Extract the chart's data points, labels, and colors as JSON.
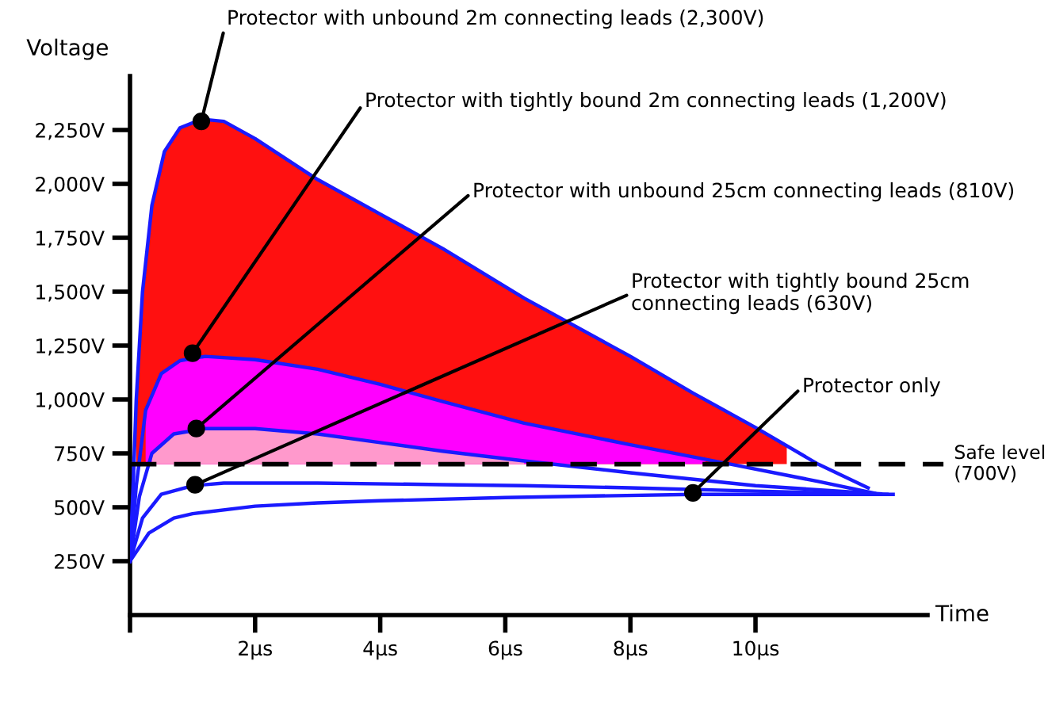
{
  "chart_data": {
    "type": "line",
    "xlabel": "Time",
    "ylabel": "Voltage",
    "xlim": [
      0,
      12.75
    ],
    "ylim": [
      0,
      2500
    ],
    "xticks": [
      {
        "value": 0,
        "label": null
      },
      {
        "value": 2,
        "label": "2μs"
      },
      {
        "value": 4,
        "label": "4μs"
      },
      {
        "value": 6,
        "label": "6μs"
      },
      {
        "value": 8,
        "label": "8μs"
      },
      {
        "value": 10,
        "label": "10μs"
      }
    ],
    "yticks": [
      {
        "value": 250,
        "label": "250V"
      },
      {
        "value": 500,
        "label": "500V"
      },
      {
        "value": 750,
        "label": "750V"
      },
      {
        "value": 1000,
        "label": "1,000V"
      },
      {
        "value": 1250,
        "label": "1,250V"
      },
      {
        "value": 1500,
        "label": "1,500V"
      },
      {
        "value": 1750,
        "label": "1,750V"
      },
      {
        "value": 2000,
        "label": "2,000V"
      },
      {
        "value": 2250,
        "label": "2,250V"
      }
    ],
    "grid": false,
    "legend": false,
    "series": [
      {
        "type": "area",
        "color": "#ff1010",
        "x": [
          0.1,
          0.2,
          0.35,
          0.55,
          0.8,
          1.15,
          1.5,
          2,
          3,
          4,
          5,
          6.3,
          8,
          9,
          10,
          10.5
        ],
        "values": [
          1000,
          1500,
          1900,
          2150,
          2260,
          2300,
          2290,
          2210,
          2020,
          1860,
          1700,
          1470,
          1200,
          1030,
          870,
          785
        ]
      },
      {
        "type": "area",
        "color": "#ff00ff",
        "x": [
          0.25,
          0.5,
          0.8,
          1.2,
          2,
          3,
          4,
          5,
          6.3,
          8,
          9.2
        ],
        "values": [
          950,
          1120,
          1180,
          1200,
          1185,
          1140,
          1070,
          990,
          890,
          790,
          720
        ]
      },
      {
        "type": "area",
        "color": "#ff99cc",
        "x": [
          0.35,
          0.7,
          1.2,
          2,
          3,
          4,
          5,
          6.3
        ],
        "values": [
          750,
          840,
          865,
          865,
          840,
          800,
          760,
          715
        ]
      },
      {
        "color": "#1a1aff",
        "x": [
          0,
          0.05,
          0.1,
          0.2,
          0.35,
          0.55,
          0.8,
          1.15,
          1.5,
          2,
          3,
          4,
          5,
          6.3,
          8,
          9,
          10,
          11,
          11.8
        ],
        "values": [
          250,
          600,
          1000,
          1500,
          1900,
          2150,
          2260,
          2300,
          2290,
          2210,
          2020,
          1860,
          1700,
          1470,
          1200,
          1030,
          870,
          700,
          590
        ]
      },
      {
        "color": "#1a1aff",
        "x": [
          0,
          0.1,
          0.25,
          0.5,
          0.8,
          1.2,
          2,
          3,
          4,
          5,
          6.3,
          8,
          9.6,
          11,
          11.9
        ],
        "values": [
          250,
          600,
          950,
          1120,
          1180,
          1200,
          1185,
          1140,
          1070,
          990,
          890,
          790,
          700,
          620,
          565
        ]
      },
      {
        "color": "#1a1aff",
        "x": [
          0,
          0.15,
          0.35,
          0.7,
          1.2,
          2,
          3,
          4,
          5,
          6.3,
          8,
          10,
          12
        ],
        "values": [
          250,
          550,
          750,
          840,
          865,
          865,
          840,
          800,
          760,
          715,
          660,
          600,
          562
        ]
      },
      {
        "type": "line",
        "color": "#1a1aff",
        "x": [
          0,
          0.2,
          0.5,
          1,
          1.5,
          3,
          5,
          6.3,
          8,
          10,
          12.1
        ],
        "values": [
          250,
          450,
          560,
          600,
          612,
          612,
          605,
          600,
          590,
          575,
          560
        ]
      },
      {
        "type": "line",
        "color": "#1a1aff",
        "x": [
          0,
          0.3,
          0.7,
          1,
          2,
          3,
          4,
          6,
          9,
          12.2
        ],
        "values": [
          250,
          380,
          450,
          470,
          505,
          520,
          530,
          545,
          560,
          560
        ]
      }
    ],
    "ref_lines": [
      {
        "axis": "y",
        "value": 700,
        "label": "Safe level\n(700V)",
        "color": "#000000",
        "line_style": "dashed"
      }
    ],
    "annotations": [
      {
        "text": "Protector with unbound 2m connecting leads (2,300V)",
        "x": 1.14,
        "y": 2290
      },
      {
        "text": "Protector with tightly bound 2m connecting leads (1,200V)",
        "x": 1.0,
        "y": 1215
      },
      {
        "text": "Protector with unbound 25cm connecting leads (810V)",
        "x": 1.06,
        "y": 865
      },
      {
        "text": "Protector with tightly bound 25cm\nconnecting leads (630V)",
        "x": 1.04,
        "y": 604
      },
      {
        "text": "Protector only",
        "x": 9.0,
        "y": 567
      }
    ]
  }
}
